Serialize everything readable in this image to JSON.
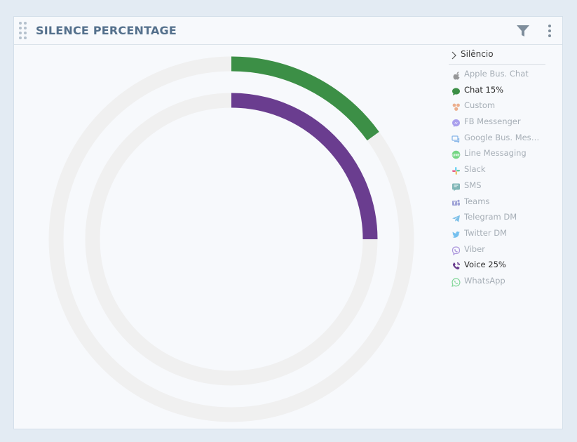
{
  "widget": {
    "title": "SILENCE PERCENTAGE"
  },
  "icons": {
    "drag": "drag-handle-icon",
    "filter": "filter-icon",
    "more": "more-vertical-icon"
  },
  "chart_data": {
    "type": "radial-bar",
    "unit": "%",
    "max": 100,
    "series": [
      {
        "name": "Chat",
        "value": 15,
        "color": "#3c8f46"
      },
      {
        "name": "Voice",
        "value": 25,
        "color": "#6a3d8f"
      }
    ],
    "track_color": "#f0f0f0"
  },
  "legend": {
    "header": "Silêncio",
    "items": [
      {
        "label": "Apple Bus. Chat",
        "icon": "apple-icon",
        "color": "#6e6e6e",
        "active": false
      },
      {
        "label": "Chat 15%",
        "icon": "chat-bubble-icon",
        "color": "#3c8f46",
        "active": true
      },
      {
        "label": "Custom",
        "icon": "custom-icon",
        "color": "#e89060",
        "active": false
      },
      {
        "label": "FB Messenger",
        "icon": "fb-messenger-icon",
        "color": "#8a7be8",
        "active": false
      },
      {
        "label": "Google Bus. Messages",
        "icon": "google-business-messages-icon",
        "color": "#5a9be0",
        "active": false
      },
      {
        "label": "Line Messaging",
        "icon": "line-icon",
        "color": "#3dc850",
        "active": false
      },
      {
        "label": "Slack",
        "icon": "slack-icon",
        "color": "#c26fa8",
        "active": false
      },
      {
        "label": "SMS",
        "icon": "sms-icon",
        "color": "#4f9a9a",
        "active": false
      },
      {
        "label": "Teams",
        "icon": "teams-icon",
        "color": "#7a80c8",
        "active": false
      },
      {
        "label": "Telegram DM",
        "icon": "telegram-icon",
        "color": "#4aa8e0",
        "active": false
      },
      {
        "label": "Twitter DM",
        "icon": "twitter-icon",
        "color": "#3fa9ea",
        "active": false
      },
      {
        "label": "Viber",
        "icon": "viber-icon",
        "color": "#8e6fd0",
        "active": false
      },
      {
        "label": "Voice 25%",
        "icon": "phone-icon",
        "color": "#6a3d8f",
        "active": true
      },
      {
        "label": "WhatsApp",
        "icon": "whatsapp-icon",
        "color": "#4cc76a",
        "active": false
      }
    ]
  }
}
